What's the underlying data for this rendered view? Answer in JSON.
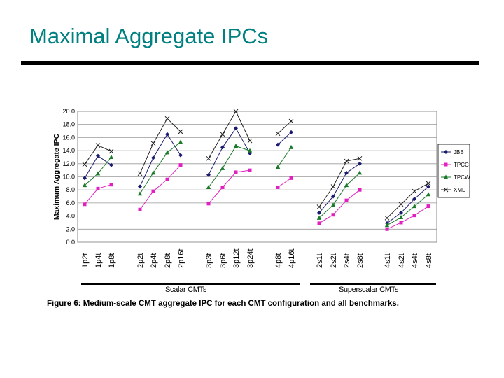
{
  "slide": {
    "title": "Maximal Aggregate IPCs"
  },
  "figure": {
    "caption": "Figure 6: Medium-scale CMT aggregate IPC for each CMT configuration and all benchmarks.",
    "groups": [
      {
        "label": "Scalar CMTs"
      },
      {
        "label": "Superscalar CMTs"
      }
    ]
  },
  "chart_data": {
    "type": "line",
    "title": "",
    "xlabel": "",
    "ylabel": "Maximum Aggregate IPC",
    "ylim": [
      0,
      20
    ],
    "yticks": [
      "0.0",
      "2.0",
      "4.0",
      "6.0",
      "8.0",
      "10.0",
      "12.0",
      "14.0",
      "16.0",
      "18.0",
      "20.0"
    ],
    "grid": true,
    "legend_position": "right",
    "categories": [
      "1p2t",
      "1p4t",
      "1p8t",
      "2p2t",
      "2p4t",
      "2p8t",
      "2p16t",
      "3p3t",
      "3p6t",
      "3p12t",
      "3p24t",
      "4p8t",
      "4p16t",
      "2s1t",
      "2s2t",
      "2s4t",
      "2s8t",
      "4s1t",
      "4s2t",
      "4s4t",
      "4s8t"
    ],
    "segments": [
      [
        0,
        2
      ],
      [
        3,
        6
      ],
      [
        7,
        10
      ],
      [
        11,
        12
      ],
      [
        13,
        16
      ],
      [
        17,
        20
      ]
    ],
    "series": [
      {
        "name": "JBB",
        "color": "#1a1a6e",
        "marker": "diamond",
        "values": [
          9.8,
          13.2,
          11.8,
          8.5,
          12.9,
          16.5,
          13.3,
          10.3,
          14.5,
          17.4,
          13.6,
          14.9,
          16.8,
          4.5,
          7.0,
          10.6,
          12.0,
          2.9,
          4.5,
          6.6,
          8.5
        ]
      },
      {
        "name": "TPCC",
        "color": "#e020c0",
        "marker": "square",
        "values": [
          5.8,
          8.2,
          8.8,
          5.0,
          7.8,
          9.6,
          11.8,
          5.9,
          8.4,
          10.7,
          11.0,
          8.4,
          9.8,
          2.9,
          4.2,
          6.4,
          8.0,
          2.0,
          3.0,
          4.1,
          5.5
        ]
      },
      {
        "name": "TPCW",
        "color": "#1a7a2a",
        "marker": "triangle",
        "values": [
          8.7,
          10.5,
          13.0,
          7.4,
          10.6,
          13.7,
          15.3,
          8.4,
          11.3,
          14.7,
          14.0,
          11.5,
          14.5,
          3.7,
          5.7,
          8.7,
          10.6,
          2.6,
          3.8,
          5.5,
          7.3
        ]
      },
      {
        "name": "XML",
        "color": "#222222",
        "marker": "x",
        "values": [
          11.9,
          14.8,
          13.9,
          10.5,
          15.1,
          18.9,
          16.9,
          12.8,
          16.5,
          20.0,
          15.5,
          16.6,
          18.5,
          5.4,
          8.5,
          12.4,
          12.8,
          3.7,
          5.8,
          7.8,
          9.0
        ]
      }
    ]
  }
}
